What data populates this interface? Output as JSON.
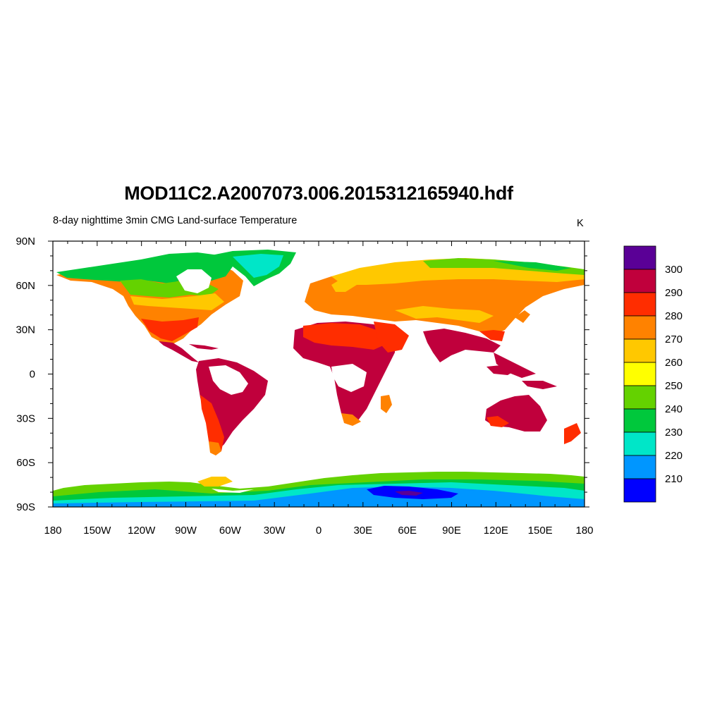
{
  "title": "MOD11C2.A2007073.006.2015312165940.hdf",
  "subtitle": "8-day nighttime 3min CMG Land-surface Temperature",
  "units": "K",
  "map": {
    "projection": "cylindrical-equidistant",
    "lon_range": [
      -180,
      180
    ],
    "lat_range": [
      -90,
      90
    ],
    "x_ticks": [
      {
        "lon": -180,
        "label": "180"
      },
      {
        "lon": -150,
        "label": "150W"
      },
      {
        "lon": -120,
        "label": "120W"
      },
      {
        "lon": -90,
        "label": "90W"
      },
      {
        "lon": -60,
        "label": "60W"
      },
      {
        "lon": -30,
        "label": "30W"
      },
      {
        "lon": 0,
        "label": "0"
      },
      {
        "lon": 30,
        "label": "30E"
      },
      {
        "lon": 60,
        "label": "60E"
      },
      {
        "lon": 90,
        "label": "90E"
      },
      {
        "lon": 120,
        "label": "120E"
      },
      {
        "lon": 150,
        "label": "150E"
      },
      {
        "lon": 180,
        "label": "180"
      }
    ],
    "y_ticks": [
      {
        "lat": 90,
        "label": "90N"
      },
      {
        "lat": 60,
        "label": "60N"
      },
      {
        "lat": 30,
        "label": "30N"
      },
      {
        "lat": 0,
        "label": "0"
      },
      {
        "lat": -30,
        "label": "30S"
      },
      {
        "lat": -60,
        "label": "60S"
      },
      {
        "lat": -90,
        "label": "90S"
      }
    ],
    "background_color": "#ffffff"
  },
  "colorbar": {
    "labels": [
      "300",
      "290",
      "280",
      "270",
      "260",
      "250",
      "240",
      "230",
      "220",
      "210"
    ],
    "colors_top_to_bottom": [
      "#5a0096",
      "#c0003c",
      "#ff2d00",
      "#ff8200",
      "#ffc800",
      "#ffff00",
      "#64d200",
      "#00c83c",
      "#00e6c8",
      "#0096ff",
      "#0000ff"
    ]
  },
  "field_colors": {
    "c300": "#5a0096",
    "c290": "#c0003c",
    "c280": "#ff2d00",
    "c270": "#ff8200",
    "c260": "#ffc800",
    "c250": "#ffff00",
    "c240": "#64d200",
    "c230": "#00c83c",
    "c220": "#00e6c8",
    "c210": "#0096ff",
    "c200": "#0000ff"
  }
}
